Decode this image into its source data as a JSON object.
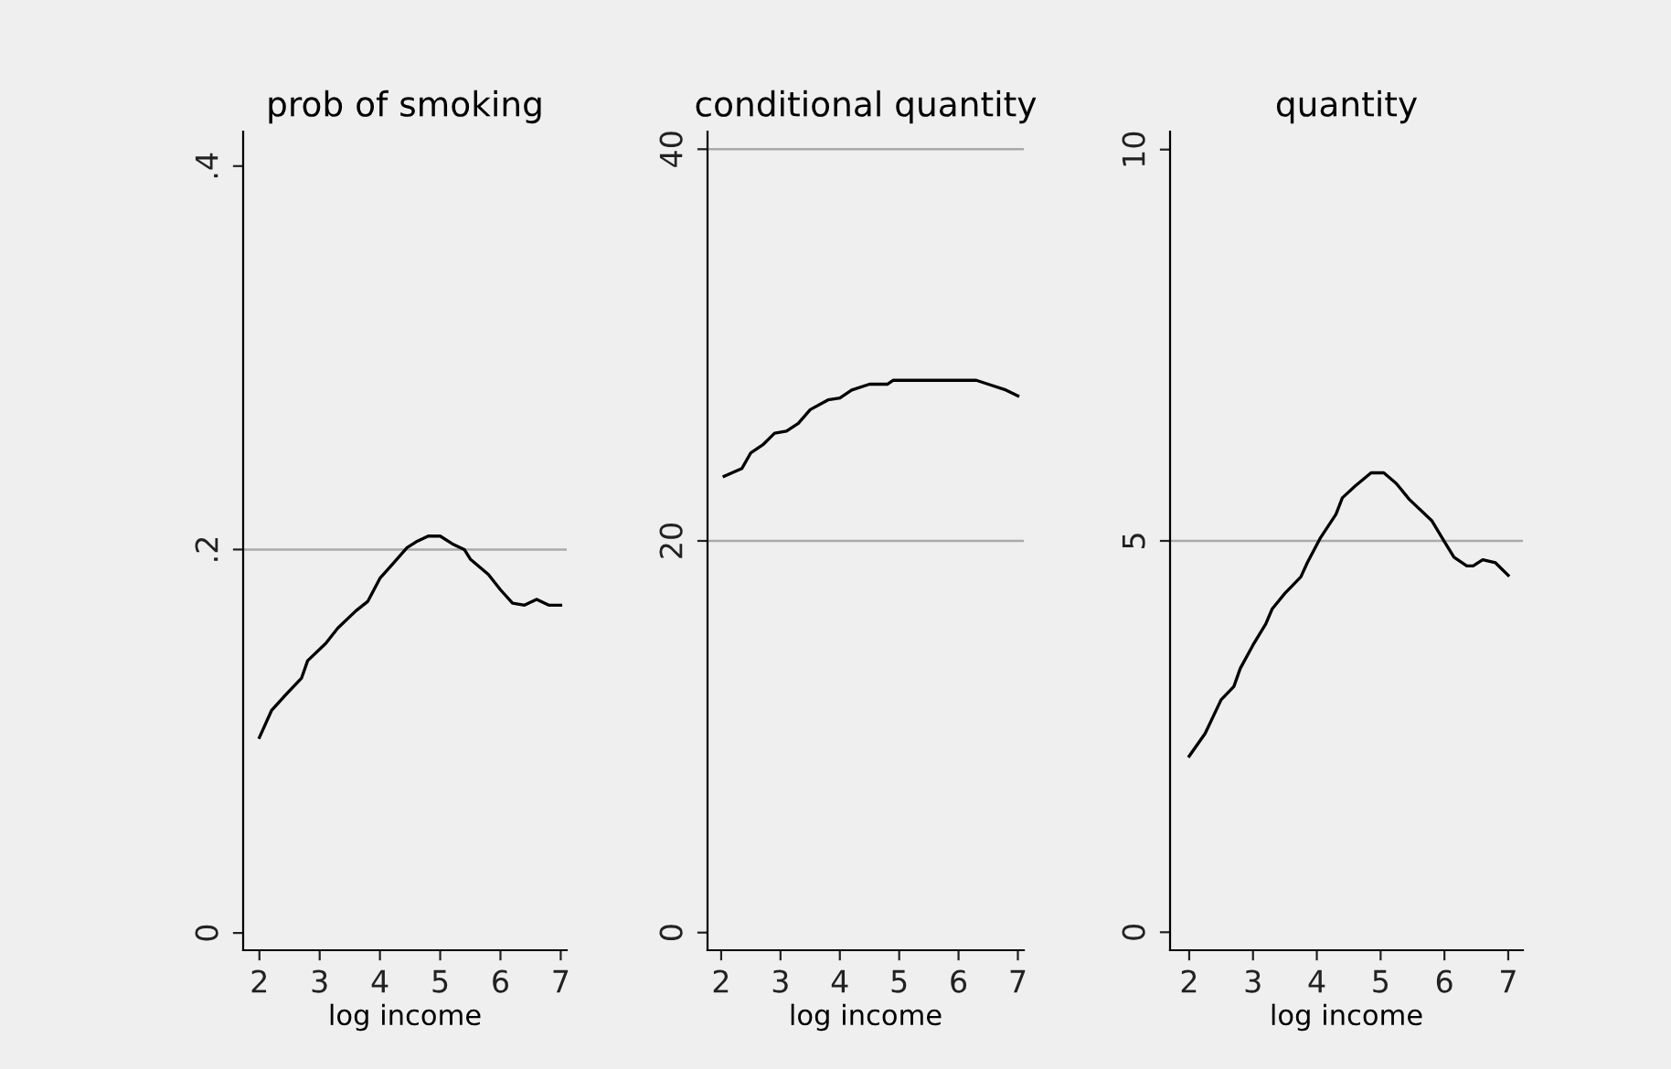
{
  "chart_data": [
    {
      "type": "line",
      "title": "prob of smoking",
      "xlabel": "log income",
      "color": "#000000",
      "x": [
        2,
        2.2,
        2.4,
        2.7,
        2.8,
        3.1,
        3.3,
        3.6,
        3.8,
        4.0,
        4.2,
        4.45,
        4.6,
        4.8,
        5.0,
        5.2,
        5.4,
        5.5,
        5.8,
        6.0,
        6.2,
        6.4,
        6.6,
        6.8,
        7
      ],
      "values": [
        0.102,
        0.116,
        0.123,
        0.133,
        0.142,
        0.151,
        0.159,
        0.168,
        0.173,
        0.185,
        0.192,
        0.201,
        0.204,
        0.207,
        0.207,
        0.203,
        0.2,
        0.195,
        0.187,
        0.179,
        0.172,
        0.171,
        0.174,
        0.171,
        0.171
      ],
      "xlim": [
        1.73,
        7.1
      ],
      "xticks": [
        2,
        3,
        4,
        5,
        6,
        7
      ],
      "ylim": [
        -0.009,
        0.418
      ],
      "yticks": [
        {
          "value": 0,
          "label": "0"
        },
        {
          "value": 0.2,
          "label": ".2"
        },
        {
          "value": 0.4,
          "label": ".4"
        }
      ],
      "ref_lines": [
        {
          "axis": "y",
          "value": 0.2,
          "color": "#aaaaaa"
        }
      ],
      "grid": false,
      "legend": false
    },
    {
      "type": "line",
      "title": "conditional quantity",
      "xlabel": "log income",
      "color": "#000000",
      "x": [
        2.05,
        2.2,
        2.35,
        2.5,
        2.7,
        2.9,
        3.1,
        3.3,
        3.5,
        3.8,
        4.0,
        4.2,
        4.5,
        4.8,
        4.9,
        5.5,
        6.3,
        6.5,
        6.8,
        7
      ],
      "values": [
        23.3,
        23.5,
        23.7,
        24.5,
        24.9,
        25.5,
        25.6,
        26.0,
        26.7,
        27.2,
        27.3,
        27.7,
        28.0,
        28.0,
        28.2,
        28.2,
        28.2,
        28.0,
        27.7,
        27.4
      ],
      "xlim": [
        1.77,
        7.1
      ],
      "xticks": [
        2,
        3,
        4,
        5,
        6,
        7
      ],
      "ylim": [
        -0.9,
        40.9
      ],
      "yticks": [
        0,
        20,
        40
      ],
      "ref_lines": [
        {
          "axis": "y",
          "value": 20,
          "color": "#aaaaaa"
        },
        {
          "axis": "y",
          "value": 40,
          "color": "#aaaaaa"
        }
      ],
      "grid": false,
      "legend": false
    },
    {
      "type": "line",
      "title": "quantity",
      "xlabel": "log income",
      "color": "#000000",
      "x": [
        2,
        2.25,
        2.5,
        2.7,
        2.8,
        3.0,
        3.2,
        3.3,
        3.5,
        3.75,
        3.85,
        4.05,
        4.3,
        4.4,
        4.6,
        4.85,
        5.05,
        5.25,
        5.45,
        5.8,
        6.0,
        6.15,
        6.35,
        6.45,
        6.6,
        6.8,
        7
      ],
      "values": [
        2.25,
        2.54,
        2.97,
        3.14,
        3.37,
        3.67,
        3.94,
        4.13,
        4.33,
        4.54,
        4.72,
        5.03,
        5.34,
        5.55,
        5.7,
        5.87,
        5.87,
        5.73,
        5.53,
        5.26,
        4.99,
        4.79,
        4.68,
        4.68,
        4.76,
        4.72,
        4.56
      ],
      "xlim": [
        1.7,
        7.23
      ],
      "xticks": [
        2,
        3,
        4,
        5,
        6,
        7
      ],
      "ylim": [
        -0.23,
        10.23
      ],
      "yticks": [
        0,
        5,
        10
      ],
      "ref_lines": [
        {
          "axis": "y",
          "value": 5,
          "color": "#aaaaaa"
        }
      ],
      "grid": false,
      "legend": false
    }
  ]
}
